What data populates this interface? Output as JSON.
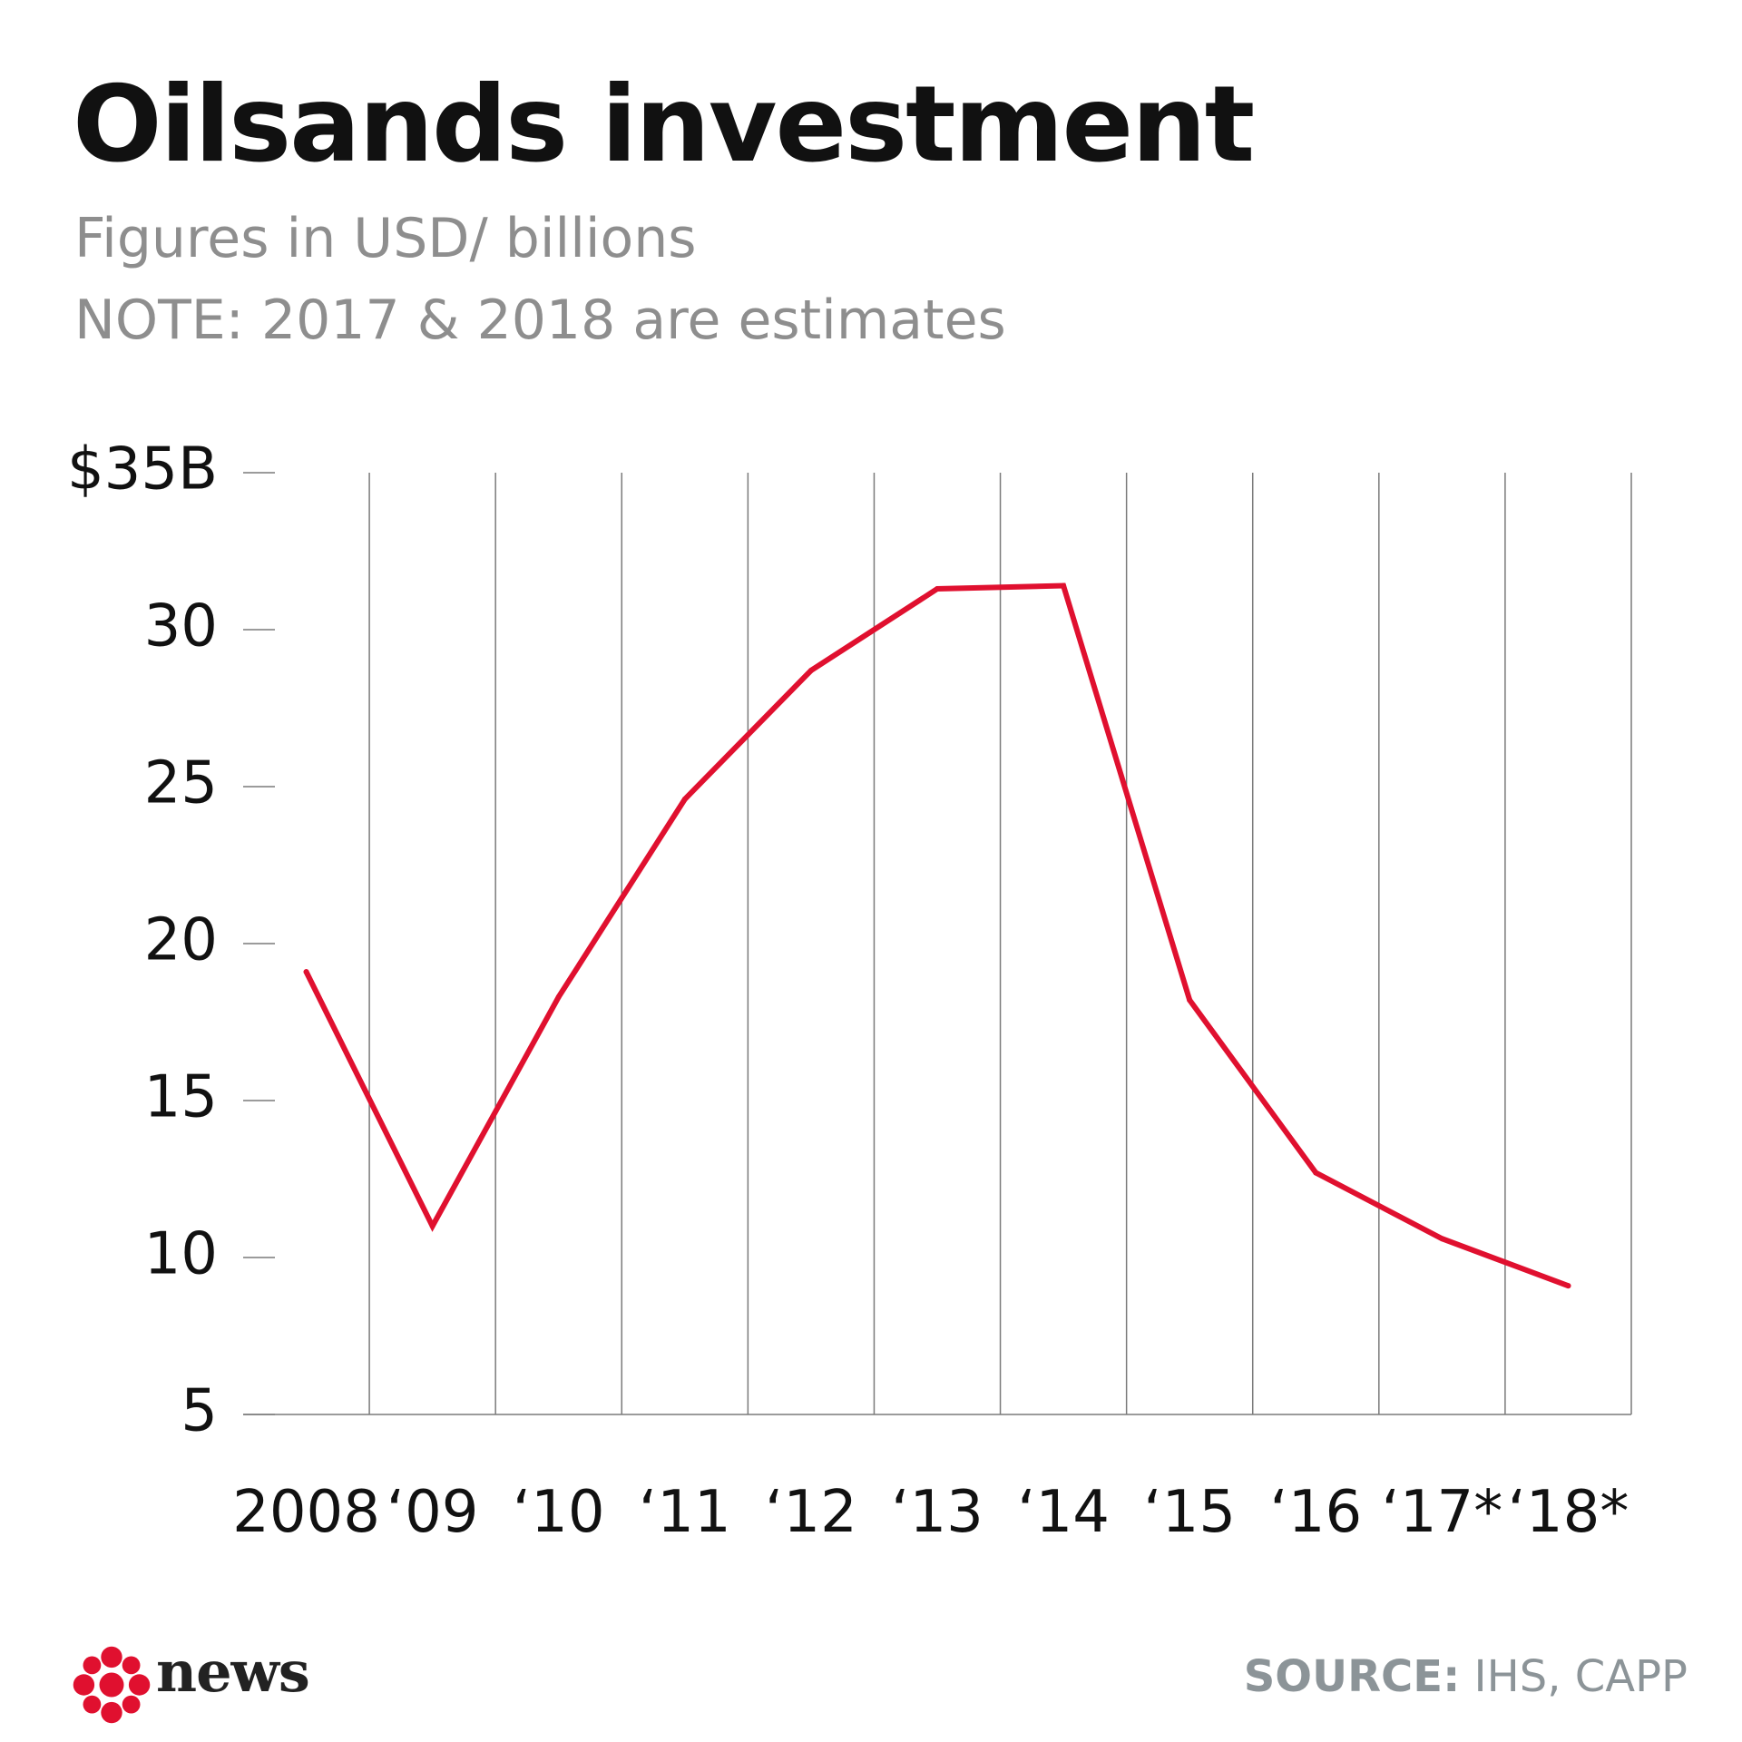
{
  "header": {
    "title": "Oilsands investment",
    "subtitle_1": "Figures in USD/ billions",
    "subtitle_2": "NOTE: 2017 & 2018 are estimates"
  },
  "footer": {
    "brand": "news",
    "source_label": "SOURCE:",
    "source_value": " IHS, CAPP"
  },
  "colors": {
    "line": "#e0102f",
    "brand_red": "#e0102f",
    "gridline": "#7a7a7a",
    "text": "#111111",
    "subtitle": "#8e8e8e"
  },
  "icons": {
    "logo": "cbc-gem-icon"
  },
  "chart_data": {
    "type": "line",
    "title": "Oilsands investment",
    "categories": [
      "2008",
      "‘09",
      "‘10",
      "‘11",
      "‘12",
      "‘13",
      "‘14",
      "‘15",
      "‘16",
      "‘17*",
      "‘18*"
    ],
    "series": [
      {
        "values": [
          19.1,
          11.0,
          18.3,
          24.6,
          28.7,
          31.3,
          31.4,
          18.2,
          12.7,
          10.6,
          9.1
        ]
      }
    ],
    "ylim": [
      5,
      35
    ],
    "yticks": [
      5,
      10,
      15,
      20,
      25,
      30,
      35
    ],
    "ytick_labels": [
      "5",
      "10",
      "15",
      "20",
      "25",
      "30",
      "$35B"
    ],
    "xlabel": "",
    "ylabel": "",
    "grid": "vertical",
    "legend": "none"
  }
}
